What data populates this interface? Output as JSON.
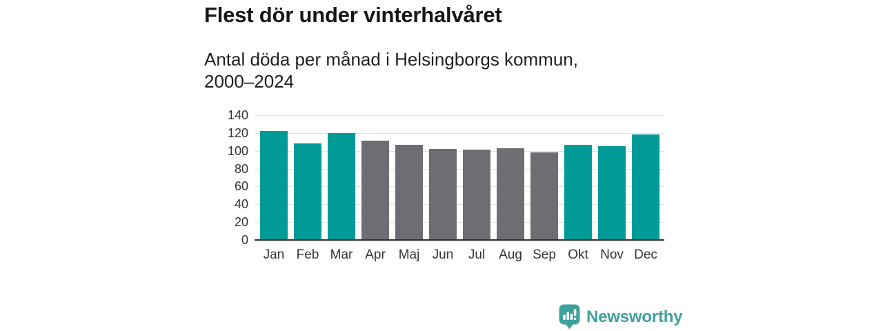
{
  "title": "Flest dör under vinterhalvåret",
  "subtitle": "Antal döda per månad i Helsingborgs kommun,\n2000–2024",
  "chart_data": {
    "type": "bar",
    "title": "Flest dör under vinterhalvåret",
    "subtitle": "Antal döda per månad i Helsingborgs kommun, 2000–2024",
    "categories": [
      "Jan",
      "Feb",
      "Mar",
      "Apr",
      "Maj",
      "Jun",
      "Jul",
      "Aug",
      "Sep",
      "Okt",
      "Nov",
      "Dec"
    ],
    "values": [
      122,
      108,
      120,
      111,
      107,
      102,
      101,
      103,
      98,
      107,
      105,
      118
    ],
    "winter_highlight": [
      true,
      true,
      true,
      false,
      false,
      false,
      false,
      false,
      false,
      true,
      true,
      true
    ],
    "xlabel": "",
    "ylabel": "",
    "ylim": [
      0,
      140
    ],
    "yticks": [
      0,
      20,
      40,
      60,
      80,
      100,
      120,
      140
    ],
    "grid": true,
    "legend_position": "none",
    "colors": {
      "winter_bar": "#009b96",
      "summer_bar": "#6e6d72",
      "gridline": "#e3e3e3",
      "axis": "#2f2f2f",
      "tick_text": "#333333"
    }
  },
  "branding": {
    "logo_text": "Newsworthy",
    "logo_color": "#3da19c",
    "logo_icon": "bar-chart-speech-bubble-icon"
  }
}
